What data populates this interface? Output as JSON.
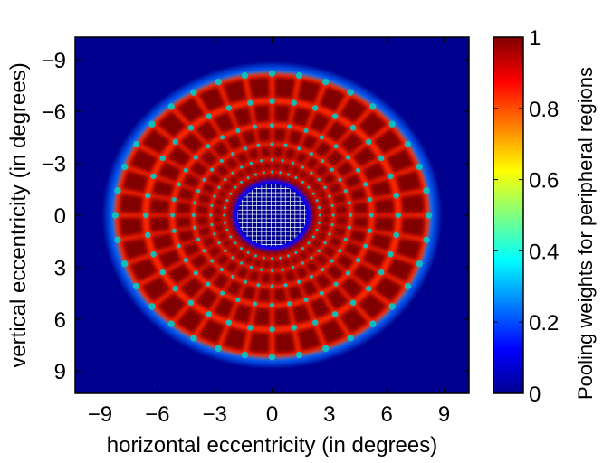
{
  "chart_data": {
    "type": "heatmap",
    "title": "",
    "xlabel": "horizontal eccentricity (in degrees)",
    "ylabel": "vertical eccentricity (in degrees)",
    "xlim": [
      -10.3,
      10.3
    ],
    "ylim": [
      10.3,
      -10.3
    ],
    "x_ticks": [
      -9,
      -6,
      -3,
      0,
      3,
      6,
      9
    ],
    "x_tick_labels": [
      "−9",
      "−6",
      "−3",
      "0",
      "3",
      "6",
      "9"
    ],
    "y_ticks": [
      -9,
      -6,
      -3,
      0,
      3,
      6,
      9
    ],
    "y_tick_labels": [
      "−9",
      "−6",
      "−3",
      "0",
      "3",
      "6",
      "9"
    ],
    "y_axis_inverted": true,
    "colormap": "jet",
    "colorbar": {
      "label": "Pooling weights for peripheral regions",
      "range": [
        0,
        1
      ],
      "ticks": [
        0,
        0.2,
        0.4,
        0.6,
        0.8,
        1
      ],
      "tick_labels": [
        "0",
        "0.2",
        "0.4",
        "0.6",
        "0.8",
        "1"
      ]
    },
    "foveal_region": {
      "radius_deg": 1.8,
      "fill_value": 0,
      "grid_overlay": true,
      "grid_color": "#ffffff"
    },
    "pooling_rings": [
      {
        "inner_deg": 1.85,
        "outer_deg": 2.5,
        "wedges": 36
      },
      {
        "inner_deg": 2.5,
        "outer_deg": 3.2,
        "wedges": 36
      },
      {
        "inner_deg": 3.2,
        "outer_deg": 4.1,
        "wedges": 36
      },
      {
        "inner_deg": 4.1,
        "outer_deg": 5.2,
        "wedges": 36
      },
      {
        "inner_deg": 5.2,
        "outer_deg": 6.6,
        "wedges": 36
      },
      {
        "inner_deg": 6.6,
        "outer_deg": 8.2,
        "wedges": 36
      }
    ],
    "outer_glow_deg": 8.9,
    "colors": {
      "background": "#00008f",
      "region_peak": "#800000",
      "region_high": "#c00000",
      "spot": "#00c8c8"
    }
  }
}
